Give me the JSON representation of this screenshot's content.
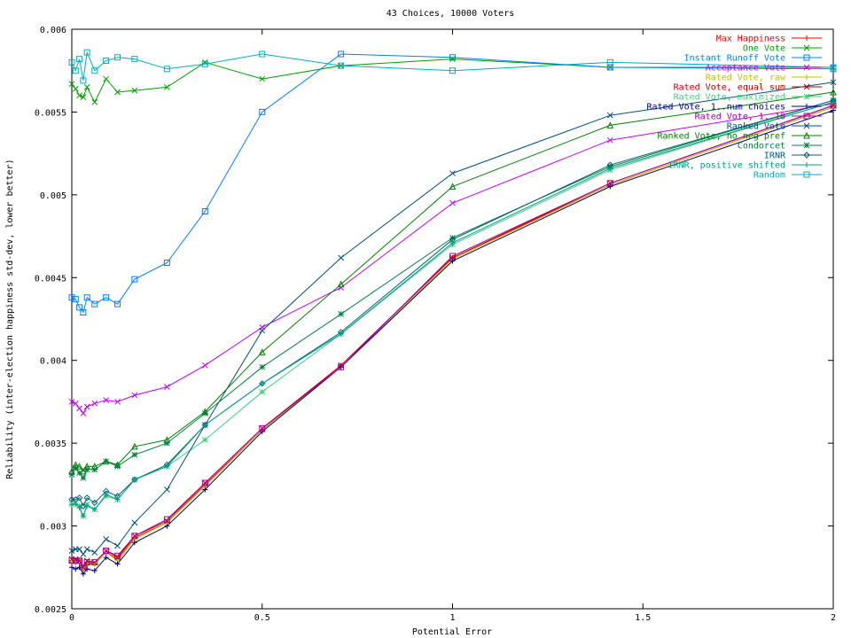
{
  "chart_data": {
    "type": "line",
    "title": "43 Choices, 10000 Voters",
    "xlabel": "Potential Error",
    "ylabel": "Reliability (inter-election happiness std-dev, lower better)",
    "xlim": [
      0,
      2
    ],
    "ylim": [
      0.0025,
      0.006
    ],
    "xticks": [
      0,
      0.5,
      1,
      1.5,
      2
    ],
    "xtick_labels": [
      "0",
      "0.5",
      "1",
      "1.5",
      "2"
    ],
    "yticks": [
      0.0025,
      0.003,
      0.0035,
      0.004,
      0.0045,
      0.005,
      0.0055,
      0.006
    ],
    "ytick_labels": [
      "0.0025",
      "0.003",
      "0.0035",
      "0.004",
      "0.0045",
      "0.005",
      "0.0055",
      "0.006"
    ],
    "grid": false,
    "legend_position": "top-right",
    "x": [
      0,
      0.01,
      0.02,
      0.03,
      0.04,
      0.06,
      0.09,
      0.12,
      0.165,
      0.25,
      0.35,
      0.5,
      0.707,
      1,
      1.414,
      2
    ],
    "series": [
      {
        "name": "Max Happiness",
        "color": "#ff0000",
        "marker": "plus",
        "values": [
          0.00278,
          0.00278,
          0.00279,
          0.00275,
          0.00277,
          0.00277,
          0.00284,
          0.0028,
          0.00293,
          0.00302,
          0.00325,
          0.00358,
          0.00397,
          0.00462,
          0.00506,
          0.00553
        ]
      },
      {
        "name": "One Vote",
        "color": "#00a000",
        "marker": "x",
        "values": [
          0.00567,
          0.00564,
          0.0056,
          0.00559,
          0.00565,
          0.00556,
          0.0057,
          0.00562,
          0.00563,
          0.00565,
          0.0058,
          0.0057,
          0.00578,
          0.00582,
          0.00577,
          0.00577
        ]
      },
      {
        "name": "Instant Runoff Vote",
        "color": "#0080ff",
        "marker": "box",
        "values": [
          0.00438,
          0.00437,
          0.00432,
          0.00429,
          0.00438,
          0.00434,
          0.00438,
          0.00434,
          0.00449,
          0.00459,
          0.0049,
          0.0055,
          0.00585,
          0.00583,
          0.00577,
          0.00576
        ]
      },
      {
        "name": "Acceptance Vote",
        "color": "#c000ff",
        "marker": "x",
        "values": [
          0.00375,
          0.00374,
          0.00371,
          0.00368,
          0.00372,
          0.00374,
          0.00376,
          0.00375,
          0.00379,
          0.00384,
          0.00397,
          0.0042,
          0.00444,
          0.00495,
          0.00533,
          0.00555
        ]
      },
      {
        "name": "Rated Vote, raw",
        "color": "#c0c000",
        "marker": "plus",
        "values": [
          0.00279,
          0.00279,
          0.00278,
          0.00274,
          0.00278,
          0.00277,
          0.00284,
          0.00279,
          0.00292,
          0.00302,
          0.00324,
          0.00358,
          0.00396,
          0.00461,
          0.00506,
          0.00553
        ]
      },
      {
        "name": "Rated Vote, equal sum",
        "color": "#c00000",
        "marker": "x",
        "values": [
          0.0028,
          0.0028,
          0.00279,
          0.00275,
          0.00279,
          0.00278,
          0.00285,
          0.00281,
          0.00294,
          0.00303,
          0.00326,
          0.00359,
          0.00397,
          0.00462,
          0.00507,
          0.00554
        ]
      },
      {
        "name": "Rated Vote, maximized",
        "color": "#40d080",
        "marker": "star",
        "values": [
          0.00313,
          0.00314,
          0.00312,
          0.00306,
          0.00313,
          0.0031,
          0.00318,
          0.00316,
          0.00328,
          0.00336,
          0.00352,
          0.00381,
          0.00416,
          0.0047,
          0.00515,
          0.00556
        ]
      },
      {
        "name": "Rated Vote, 1..num choices",
        "color": "#000080",
        "marker": "plus",
        "values": [
          0.00275,
          0.00274,
          0.00275,
          0.00271,
          0.00274,
          0.00273,
          0.00281,
          0.00277,
          0.0029,
          0.003,
          0.00322,
          0.00357,
          0.00396,
          0.0046,
          0.00505,
          0.00551
        ]
      },
      {
        "name": "Rated Vote, 1..10",
        "color": "#a000a0",
        "marker": "box",
        "values": [
          0.00279,
          0.00279,
          0.00279,
          0.00275,
          0.00278,
          0.00278,
          0.00285,
          0.00282,
          0.00294,
          0.00304,
          0.00326,
          0.00359,
          0.00396,
          0.00463,
          0.00507,
          0.00554
        ]
      },
      {
        "name": "Ranked Vote",
        "color": "#005080",
        "marker": "x",
        "values": [
          0.00285,
          0.00286,
          0.00286,
          0.00283,
          0.00286,
          0.00284,
          0.00292,
          0.00288,
          0.00302,
          0.00322,
          0.00361,
          0.00418,
          0.00462,
          0.00513,
          0.00548,
          0.00568
        ]
      },
      {
        "name": "Ranked Vote, no neg pref",
        "color": "#008000",
        "marker": "triangle",
        "values": [
          0.00333,
          0.00337,
          0.00336,
          0.00333,
          0.00336,
          0.00336,
          0.00339,
          0.00337,
          0.00348,
          0.00352,
          0.00369,
          0.00405,
          0.00446,
          0.00505,
          0.00542,
          0.00562
        ]
      },
      {
        "name": "Condorcet",
        "color": "#008040",
        "marker": "star",
        "values": [
          0.00331,
          0.00335,
          0.00332,
          0.00329,
          0.00334,
          0.00334,
          0.00339,
          0.00336,
          0.00343,
          0.0035,
          0.00368,
          0.00396,
          0.00428,
          0.00474,
          0.00517,
          0.00557
        ]
      },
      {
        "name": "IRNR",
        "color": "#006080",
        "marker": "diamond",
        "values": [
          0.00316,
          0.00316,
          0.00317,
          0.00312,
          0.00317,
          0.00314,
          0.00321,
          0.00318,
          0.00328,
          0.00337,
          0.00361,
          0.00386,
          0.00417,
          0.00473,
          0.00518,
          0.00557
        ]
      },
      {
        "name": "IRNR, positive shifted",
        "color": "#00a080",
        "marker": "plus",
        "values": [
          0.00313,
          0.00313,
          0.00311,
          0.00306,
          0.00312,
          0.0031,
          0.00319,
          0.00316,
          0.00328,
          0.00336,
          0.00361,
          0.00386,
          0.00416,
          0.00471,
          0.00516,
          0.00556
        ]
      },
      {
        "name": "Random",
        "color": "#00b0c0",
        "marker": "box",
        "values": [
          0.0058,
          0.00575,
          0.00582,
          0.00569,
          0.00586,
          0.00575,
          0.00581,
          0.00583,
          0.00582,
          0.00576,
          0.00579,
          0.00585,
          0.00578,
          0.00575,
          0.0058,
          0.00577
        ]
      }
    ]
  }
}
